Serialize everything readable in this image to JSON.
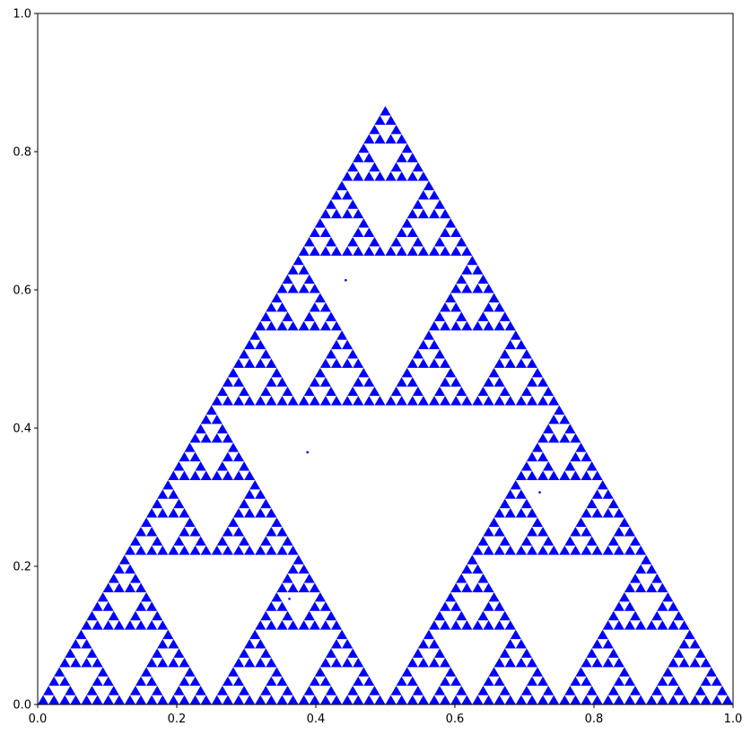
{
  "chart_data": {
    "type": "scatter",
    "title": "",
    "xlabel": "",
    "ylabel": "",
    "xlim": [
      0.0,
      1.0
    ],
    "ylim": [
      0.0,
      1.0
    ],
    "grid": false,
    "marker_color": "#0000ff",
    "description_series": {
      "name": "Sierpinski triangle (chaos game points)",
      "vertices": [
        [
          0.0,
          0.0
        ],
        [
          1.0,
          0.0
        ],
        [
          0.5,
          0.866
        ]
      ],
      "depth": 6
    },
    "stray_points": [
      {
        "x": 0.443,
        "y": 0.614
      },
      {
        "x": 0.388,
        "y": 0.365
      },
      {
        "x": 0.722,
        "y": 0.307
      },
      {
        "x": 0.362,
        "y": 0.153
      }
    ],
    "xticks": [
      "0.0",
      "0.2",
      "0.4",
      "0.6",
      "0.8",
      "1.0"
    ],
    "yticks": [
      "0.0",
      "0.2",
      "0.4",
      "0.6",
      "0.8",
      "1.0"
    ],
    "xtick_values": [
      0.0,
      0.2,
      0.4,
      0.6,
      0.8,
      1.0
    ],
    "ytick_values": [
      0.0,
      0.2,
      0.4,
      0.6,
      0.8,
      1.0
    ]
  }
}
